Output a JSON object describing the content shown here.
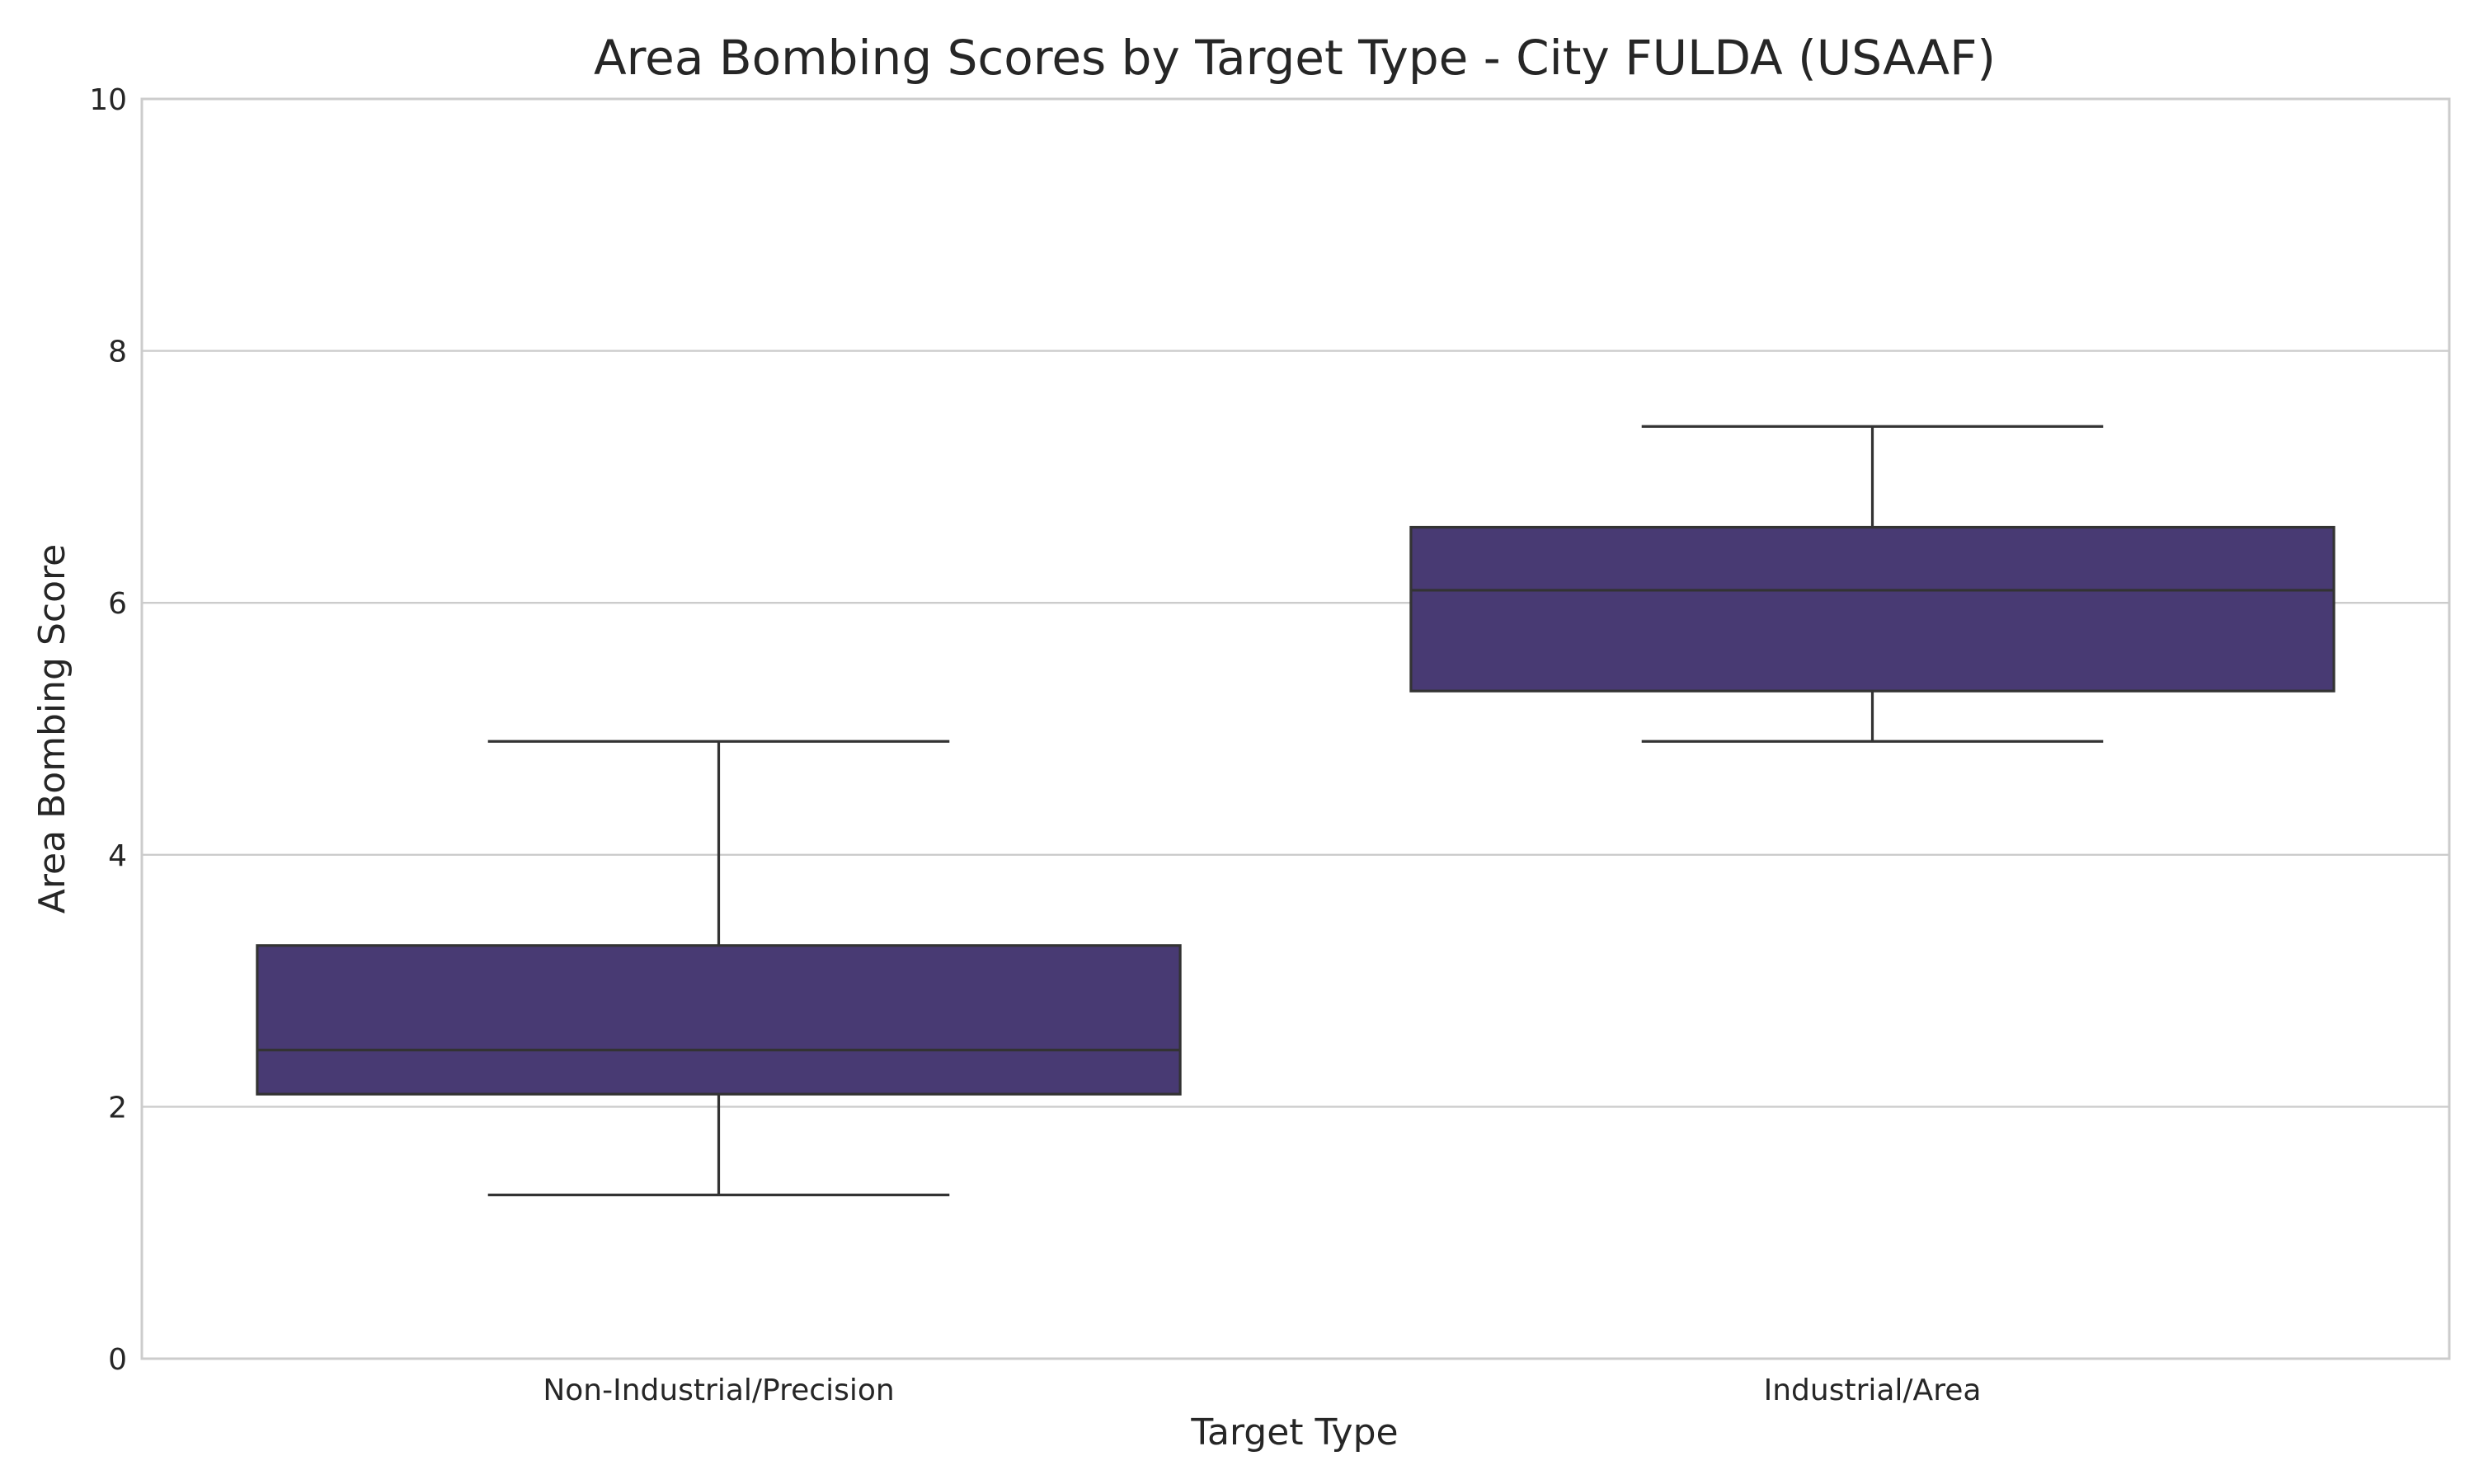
{
  "chart_data": {
    "type": "box",
    "title": "Area Bombing Scores by Target Type - City FULDA (USAAF)",
    "xlabel": "Target Type",
    "ylabel": "Area Bombing Score",
    "ylim": [
      0,
      10
    ],
    "yticks": [
      0,
      2,
      4,
      6,
      8,
      10
    ],
    "grid": true,
    "box_color": "#483a73",
    "line_color": "#333333",
    "categories": [
      "Non-Industrial/Precision",
      "Industrial/Area"
    ],
    "boxes": [
      {
        "category": "Non-Industrial/Precision",
        "whisker_low": 1.3,
        "q1": 2.1,
        "median": 2.45,
        "q3": 3.28,
        "whisker_high": 4.9
      },
      {
        "category": "Industrial/Area",
        "whisker_low": 4.9,
        "q1": 5.3,
        "median": 6.1,
        "q3": 6.6,
        "whisker_high": 7.4
      }
    ]
  }
}
